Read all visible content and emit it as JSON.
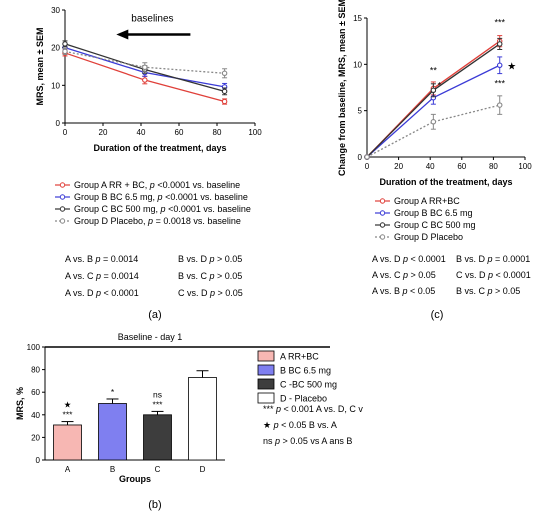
{
  "chart_data": [
    {
      "panel": "a",
      "type": "line",
      "xlabel": "Duration of the treatment, days",
      "ylabel": "MRS, mean ± SEM",
      "xlim": [
        0,
        100
      ],
      "ylim": [
        0,
        30
      ],
      "xticks": [
        0,
        20,
        40,
        60,
        80,
        100
      ],
      "yticks": [
        0,
        10,
        20,
        30
      ],
      "annotation": "baselines",
      "series": [
        {
          "name": "Group A RR + BC, p <0.0001 vs. baseline",
          "color": "#e0403a",
          "x": [
            0,
            42,
            84
          ],
          "y": [
            18.6,
            11.4,
            5.7
          ],
          "err": [
            0.8,
            1.0,
            0.7
          ],
          "dash": ""
        },
        {
          "name": "Group B BC 6.5 mg, p <0.0001 vs. baseline",
          "color": "#3b3bd6",
          "x": [
            0,
            42,
            84
          ],
          "y": [
            20.0,
            13.4,
            9.6
          ],
          "err": [
            0.8,
            1.0,
            0.9
          ],
          "dash": ""
        },
        {
          "name": "Group C BC 500 mg, p <0.0001 vs. baseline",
          "color": "#333333",
          "x": [
            0,
            42,
            84
          ],
          "y": [
            21.0,
            14.2,
            8.4
          ],
          "err": [
            0.8,
            1.0,
            0.9
          ],
          "dash": ""
        },
        {
          "name": "Group D Placebo, p = 0.0018 vs. baseline",
          "color": "#888888",
          "x": [
            0,
            42,
            84
          ],
          "y": [
            19.0,
            14.8,
            13.2
          ],
          "err": [
            0.8,
            1.2,
            1.2
          ],
          "dash": "2,2"
        }
      ],
      "comparisons": [
        [
          "A vs. B p = 0.0014",
          "B vs. D p > 0.05"
        ],
        [
          "A vs. C p = 0.0014",
          "B vs. C p > 0.05"
        ],
        [
          "A vs. D p < 0.0001",
          "C vs. D p > 0.05"
        ]
      ],
      "caption": "(a)"
    },
    {
      "panel": "c",
      "type": "line",
      "xlabel": "Duration of the treatment, days",
      "ylabel": "Change from baseline, MRS, mean ± SEM",
      "xlim": [
        0,
        100
      ],
      "ylim": [
        0,
        15
      ],
      "xticks": [
        0,
        20,
        40,
        60,
        80,
        100
      ],
      "yticks": [
        0,
        5,
        10,
        15
      ],
      "series": [
        {
          "name": "Group A RR+BC",
          "color": "#e0403a",
          "x": [
            0,
            42,
            84
          ],
          "y": [
            0,
            7.4,
            12.5
          ],
          "err": [
            0,
            0.7,
            0.6
          ],
          "dash": ""
        },
        {
          "name": "Group B BC 6.5 mg",
          "color": "#3b3bd6",
          "x": [
            0,
            42,
            84
          ],
          "y": [
            0,
            6.4,
            9.9
          ],
          "err": [
            0,
            0.7,
            0.9
          ],
          "dash": ""
        },
        {
          "name": "Group C BC 500 mg",
          "color": "#333333",
          "x": [
            0,
            42,
            84
          ],
          "y": [
            0,
            7.2,
            12.2
          ],
          "err": [
            0,
            0.7,
            0.6
          ],
          "dash": ""
        },
        {
          "name": "Group D Placebo",
          "color": "#888888",
          "x": [
            0,
            42,
            84
          ],
          "y": [
            0,
            3.8,
            5.6
          ],
          "err": [
            0,
            0.8,
            1.0
          ],
          "dash": "2,2"
        }
      ],
      "markers": [
        {
          "x": 42,
          "y": 9.0,
          "text": "**"
        },
        {
          "x": 84,
          "y": 14.2,
          "text": "***"
        },
        {
          "x": 84,
          "y": 7.6,
          "text": "***"
        },
        {
          "x": 42,
          "y": 7.4,
          "text": "*"
        }
      ],
      "star_marker": {
        "x": 84,
        "y": 9.9
      },
      "comparisons": [
        [
          "A vs. D p < 0.0001",
          "B vs. D p = 0.0001"
        ],
        [
          "A vs. C p > 0.05",
          "C vs. D p < 0.0001"
        ],
        [
          "A vs. B p < 0.05",
          "B vs. C p > 0.05"
        ]
      ],
      "caption": "(c)"
    },
    {
      "panel": "b",
      "type": "bar",
      "title": "Baseline - day 1",
      "xlabel": "Groups",
      "ylabel": "MRS, %",
      "ylim": [
        0,
        100
      ],
      "yticks": [
        0,
        20,
        40,
        60,
        80,
        100
      ],
      "categories": [
        "A",
        "B",
        "C",
        "D"
      ],
      "values": [
        31,
        50,
        40,
        73
      ],
      "errors": [
        3,
        4,
        3,
        6
      ],
      "colors": [
        "#f7b7b3",
        "#7f7ff0",
        "#3d3d3d",
        "#ffffff"
      ],
      "bar_marks": [
        {
          "cat": "A",
          "lines": [
            "★",
            "***"
          ]
        },
        {
          "cat": "B",
          "lines": [
            "*"
          ]
        },
        {
          "cat": "C",
          "lines": [
            "ns",
            "***"
          ]
        }
      ],
      "legend": [
        "A RR+BC",
        "B  BC 6.5 mg",
        "C -BC 500 mg",
        "D - Placebo"
      ],
      "notes": [
        {
          "prefix": "***",
          "text": " p < 0.001 A vs. D, C v"
        },
        {
          "prefix": "★",
          "text": " p < 0.05 B vs. A"
        },
        {
          "prefix": "ns",
          "text": " p > 0.05 vs A ans B"
        }
      ],
      "caption": "(b)"
    }
  ]
}
